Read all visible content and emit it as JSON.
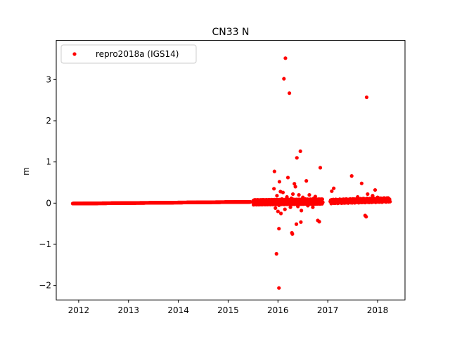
{
  "chart_data": {
    "type": "scatter",
    "title": "CN33 N",
    "xlabel": "",
    "ylabel": "m",
    "xlim": [
      2011.55,
      2018.55
    ],
    "ylim": [
      -2.35,
      3.95
    ],
    "xticks": [
      2012,
      2013,
      2014,
      2015,
      2016,
      2017,
      2018
    ],
    "xtick_labels": [
      "2012",
      "2013",
      "2014",
      "2015",
      "2016",
      "2017",
      "2018"
    ],
    "yticks": [
      -2,
      -1,
      0,
      1,
      2,
      3
    ],
    "ytick_labels": [
      "−2",
      "−1",
      "0",
      "1",
      "2",
      "3"
    ],
    "grid": false,
    "legend": {
      "placement": "top-left",
      "entries": [
        "repro2018a (IGS14)"
      ]
    },
    "series": [
      {
        "name": "repro2018a (IGS14)",
        "color": "#ff0000",
        "marker": "circle",
        "dense_band": [
          {
            "x_start": 2011.88,
            "x_end": 2015.45,
            "y_start": -0.01,
            "y_end": 0.03,
            "step": 0.004
          },
          {
            "x_start": 2015.5,
            "x_end": 2016.9,
            "y_start": 0.02,
            "y_end": 0.04,
            "step": 0.005,
            "scatter_amplitude": 0.06
          },
          {
            "x_start": 2017.05,
            "x_end": 2018.25,
            "y_start": 0.04,
            "y_end": 0.08,
            "step": 0.01,
            "scatter_amplitude": 0.05
          }
        ],
        "points": [
          {
            "x": 2016.15,
            "y": 3.52
          },
          {
            "x": 2016.12,
            "y": 3.02
          },
          {
            "x": 2016.23,
            "y": 2.67
          },
          {
            "x": 2017.78,
            "y": 2.57
          },
          {
            "x": 2016.45,
            "y": 1.26
          },
          {
            "x": 2016.38,
            "y": 1.1
          },
          {
            "x": 2016.85,
            "y": 0.86
          },
          {
            "x": 2015.93,
            "y": 0.77
          },
          {
            "x": 2017.48,
            "y": 0.66
          },
          {
            "x": 2016.2,
            "y": 0.62
          },
          {
            "x": 2016.57,
            "y": 0.54
          },
          {
            "x": 2016.03,
            "y": 0.52
          },
          {
            "x": 2017.68,
            "y": 0.48
          },
          {
            "x": 2016.33,
            "y": 0.47
          },
          {
            "x": 2016.35,
            "y": 0.4
          },
          {
            "x": 2015.92,
            "y": 0.35
          },
          {
            "x": 2017.12,
            "y": 0.36
          },
          {
            "x": 2017.95,
            "y": 0.32
          },
          {
            "x": 2017.08,
            "y": 0.29
          },
          {
            "x": 2016.05,
            "y": 0.28
          },
          {
            "x": 2016.1,
            "y": 0.26
          },
          {
            "x": 2016.3,
            "y": 0.22
          },
          {
            "x": 2017.8,
            "y": 0.22
          },
          {
            "x": 2016.42,
            "y": 0.2
          },
          {
            "x": 2016.63,
            "y": 0.2
          },
          {
            "x": 2017.9,
            "y": 0.18
          },
          {
            "x": 2015.98,
            "y": 0.18
          },
          {
            "x": 2016.75,
            "y": 0.16
          },
          {
            "x": 2016.18,
            "y": 0.15
          },
          {
            "x": 2017.6,
            "y": 0.15
          },
          {
            "x": 2016.5,
            "y": 0.14
          },
          {
            "x": 2018.0,
            "y": 0.14
          },
          {
            "x": 2016.27,
            "y": 0.12
          },
          {
            "x": 2016.72,
            "y": 0.12
          },
          {
            "x": 2017.72,
            "y": 0.11
          },
          {
            "x": 2018.18,
            "y": 0.12
          },
          {
            "x": 2016.08,
            "y": 0.1
          },
          {
            "x": 2016.55,
            "y": 0.1
          },
          {
            "x": 2017.85,
            "y": 0.1
          },
          {
            "x": 2016.4,
            "y": -0.08
          },
          {
            "x": 2016.6,
            "y": -0.06
          },
          {
            "x": 2016.02,
            "y": -0.05
          },
          {
            "x": 2015.95,
            "y": -0.12
          },
          {
            "x": 2016.25,
            "y": -0.1
          },
          {
            "x": 2016.7,
            "y": -0.1
          },
          {
            "x": 2016.14,
            "y": -0.15
          },
          {
            "x": 2016.0,
            "y": -0.2
          },
          {
            "x": 2016.47,
            "y": -0.18
          },
          {
            "x": 2016.06,
            "y": -0.25
          },
          {
            "x": 2017.75,
            "y": -0.3
          },
          {
            "x": 2017.77,
            "y": -0.33
          },
          {
            "x": 2016.8,
            "y": -0.42
          },
          {
            "x": 2016.83,
            "y": -0.45
          },
          {
            "x": 2016.46,
            "y": -0.46
          },
          {
            "x": 2016.37,
            "y": -0.51
          },
          {
            "x": 2016.02,
            "y": -0.62
          },
          {
            "x": 2016.28,
            "y": -0.72
          },
          {
            "x": 2016.29,
            "y": -0.75
          },
          {
            "x": 2015.97,
            "y": -1.23
          },
          {
            "x": 2016.02,
            "y": -2.06
          }
        ]
      }
    ]
  }
}
